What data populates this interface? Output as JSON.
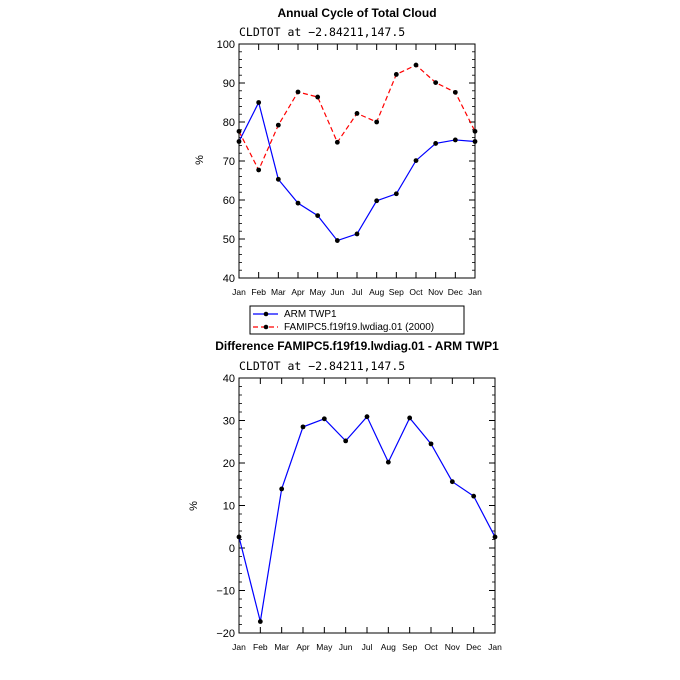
{
  "chart_data": [
    {
      "type": "line",
      "title": "Annual Cycle of Total Cloud",
      "subtitle": "CLDTOT at −2.84211,147.5",
      "ylabel": "%",
      "xlabel": "",
      "categories": [
        "Jan",
        "Feb",
        "Mar",
        "Apr",
        "May",
        "Jun",
        "Jul",
        "Aug",
        "Sep",
        "Oct",
        "Nov",
        "Dec",
        "Jan"
      ],
      "ylim": [
        40,
        100
      ],
      "yticks": [
        40,
        50,
        60,
        70,
        80,
        90,
        100
      ],
      "series": [
        {
          "name": "ARM TWP1",
          "color": "#0000ff",
          "dash": "solid",
          "values": [
            75.0,
            85.0,
            65.3,
            59.2,
            56.0,
            49.6,
            51.3,
            59.8,
            61.6,
            70.1,
            74.5,
            75.4,
            75.0
          ]
        },
        {
          "name": "FAMIPC5.f19f19.lwdiag.01 (2000)",
          "color": "#ff0000",
          "dash": "dashed",
          "values": [
            77.6,
            67.7,
            79.2,
            87.7,
            86.4,
            74.8,
            82.2,
            80.0,
            92.2,
            94.6,
            90.1,
            87.6,
            77.6
          ]
        }
      ],
      "legend": "below"
    },
    {
      "type": "line",
      "title": "Difference FAMIPC5.f19f19.lwdiag.01 - ARM TWP1",
      "subtitle": "CLDTOT at −2.84211,147.5",
      "ylabel": "%",
      "xlabel": "",
      "categories": [
        "Jan",
        "Feb",
        "Mar",
        "Apr",
        "May",
        "Jun",
        "Jul",
        "Aug",
        "Sep",
        "Oct",
        "Nov",
        "Dec",
        "Jan"
      ],
      "ylim": [
        -20,
        40
      ],
      "yticks": [
        -20,
        -10,
        0,
        10,
        20,
        30,
        40
      ],
      "ytick_labels": [
        "−20",
        "−10",
        "0",
        "10",
        "20",
        "30",
        "40"
      ],
      "series": [
        {
          "name": "Difference",
          "color": "#0000ff",
          "dash": "solid",
          "values": [
            2.6,
            -17.3,
            13.9,
            28.5,
            30.4,
            25.2,
            30.9,
            20.2,
            30.6,
            24.5,
            15.6,
            12.2,
            2.6
          ]
        }
      ]
    }
  ]
}
